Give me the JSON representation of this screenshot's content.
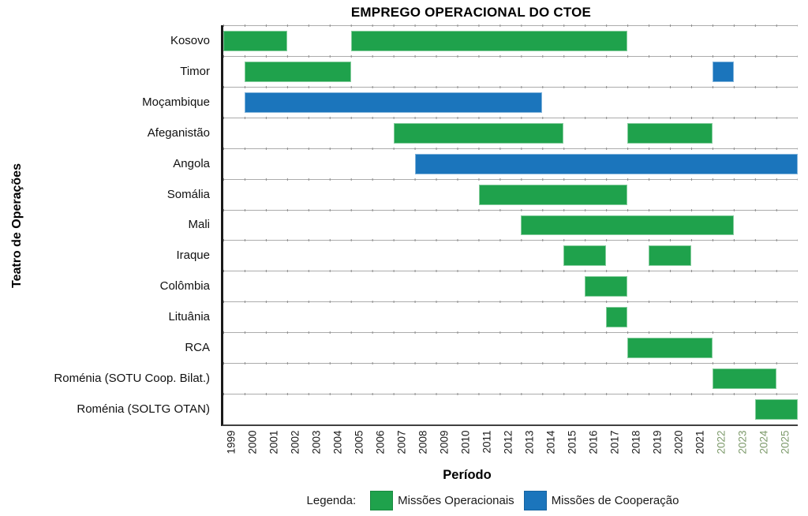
{
  "title": "EMPREGO OPERACIONAL DO CTOE",
  "axis": {
    "x_title": "Período",
    "y_title": "Teatro de Operações"
  },
  "legend": {
    "prefix": "Legenda:",
    "entries": [
      "op",
      "coop"
    ]
  },
  "colors": {
    "green": "#1FA24C",
    "blue": "#1B75BC",
    "grid_line": "#ACACAC",
    "tick_mark": "#8C8C8C",
    "year_label": "#1A1A1A",
    "year_label_recent": "#7E9B6C"
  },
  "chart_data": {
    "type": "bar",
    "subtype": "gantt",
    "title": "EMPREGO OPERACIONAL DO CTOE",
    "xlabel": "Período",
    "ylabel": "Teatro de Operações",
    "x_min": 1999,
    "x_max": 2025,
    "grid": "horizontal-row-separators-with-year-ticks",
    "legend_position": "bottom",
    "year_labels": [
      1999,
      2000,
      2001,
      2002,
      2003,
      2004,
      2005,
      2006,
      2007,
      2008,
      2009,
      2010,
      2011,
      2012,
      2013,
      2014,
      2015,
      2016,
      2017,
      2018,
      2019,
      2020,
      2021,
      2022,
      2023,
      2024,
      2025
    ],
    "year_label_highlight_from": 2022,
    "series_defs": {
      "op": {
        "name": "Missões Operacionais",
        "color_key": "green"
      },
      "coop": {
        "name": "Missões de Cooperação",
        "color_key": "blue"
      }
    },
    "rows": [
      {
        "label": "Kosovo",
        "segments": [
          {
            "start": 1999,
            "end": 2001,
            "series": "op"
          },
          {
            "start": 2005,
            "end": 2017,
            "series": "op"
          }
        ]
      },
      {
        "label": "Timor",
        "segments": [
          {
            "start": 2000,
            "end": 2004,
            "series": "op"
          },
          {
            "start": 2022,
            "end": 2022,
            "series": "coop"
          }
        ]
      },
      {
        "label": "Moçambique",
        "segments": [
          {
            "start": 2000,
            "end": 2013,
            "series": "coop"
          }
        ]
      },
      {
        "label": "Afeganistão",
        "segments": [
          {
            "start": 2007,
            "end": 2014,
            "series": "op"
          },
          {
            "start": 2018,
            "end": 2021,
            "series": "op"
          }
        ]
      },
      {
        "label": "Angola",
        "segments": [
          {
            "start": 2008,
            "end": 2025,
            "series": "coop"
          }
        ]
      },
      {
        "label": "Somália",
        "segments": [
          {
            "start": 2011,
            "end": 2017,
            "series": "op"
          }
        ]
      },
      {
        "label": "Mali",
        "segments": [
          {
            "start": 2013,
            "end": 2022,
            "series": "op"
          }
        ]
      },
      {
        "label": "Iraque",
        "segments": [
          {
            "start": 2015,
            "end": 2016,
            "series": "op"
          },
          {
            "start": 2019,
            "end": 2020,
            "series": "op"
          }
        ]
      },
      {
        "label": "Colômbia",
        "segments": [
          {
            "start": 2016,
            "end": 2017,
            "series": "op"
          }
        ]
      },
      {
        "label": "Lituânia",
        "segments": [
          {
            "start": 2017,
            "end": 2017,
            "series": "op"
          }
        ]
      },
      {
        "label": "RCA",
        "segments": [
          {
            "start": 2018,
            "end": 2021,
            "series": "op"
          }
        ]
      },
      {
        "label": "Roménia (SOTU Coop. Bilat.)",
        "segments": [
          {
            "start": 2022,
            "end": 2024,
            "series": "op"
          }
        ]
      },
      {
        "label": "Roménia (SOLTG OTAN)",
        "segments": [
          {
            "start": 2024,
            "end": 2025,
            "series": "op"
          }
        ]
      }
    ]
  }
}
